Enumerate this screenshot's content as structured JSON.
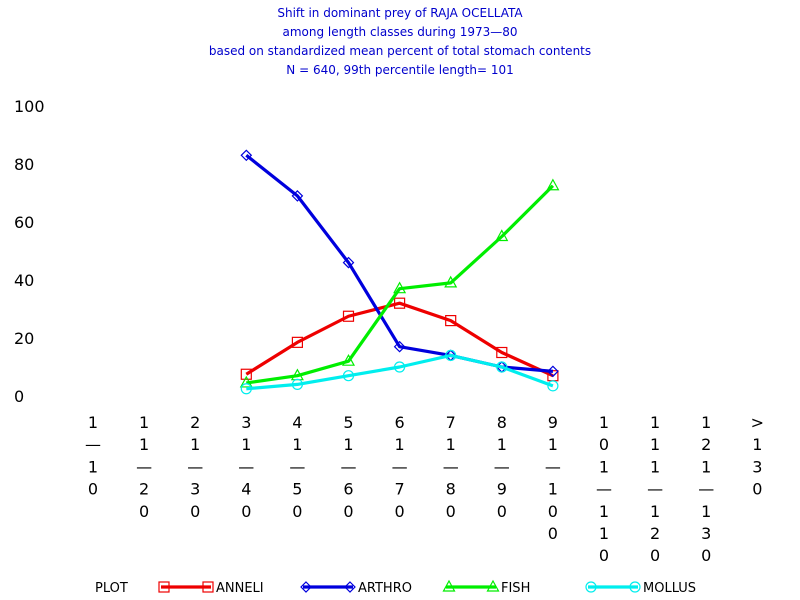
{
  "chart_data": {
    "type": "line",
    "title_lines": [
      "Shift in dominant prey of RAJA OCELLATA",
      "among length classes during 1973—80",
      "based on standardized mean percent of  total stomach contents",
      "N =  640, 99th percentile  length= 101"
    ],
    "ylim": [
      0,
      100
    ],
    "yticks": [
      "0",
      "20",
      "40",
      "60",
      "80",
      "100"
    ],
    "categories": [
      "1—10",
      "11—20",
      "21—30",
      "31—40",
      "41—50",
      "51—60",
      "61—70",
      "71—80",
      "81—90",
      "91—100",
      "101—110",
      "111—120",
      "121—130",
      ">130"
    ],
    "category_labels_stacked": [
      [
        "1",
        "—",
        "1",
        "0"
      ],
      [
        "1",
        "1",
        "—",
        "2",
        "0"
      ],
      [
        "2",
        "1",
        "—",
        "3",
        "0"
      ],
      [
        "3",
        "1",
        "—",
        "4",
        "0"
      ],
      [
        "4",
        "1",
        "—",
        "5",
        "0"
      ],
      [
        "5",
        "1",
        "—",
        "6",
        "0"
      ],
      [
        "6",
        "1",
        "—",
        "7",
        "0"
      ],
      [
        "7",
        "1",
        "—",
        "8",
        "0"
      ],
      [
        "8",
        "1",
        "—",
        "9",
        "0"
      ],
      [
        "9",
        "1",
        "—",
        "1",
        "0",
        "0"
      ],
      [
        "1",
        "0",
        "1",
        "—",
        "1",
        "1",
        "0"
      ],
      [
        "1",
        "1",
        "1",
        "—",
        "1",
        "2",
        "0"
      ],
      [
        "1",
        "2",
        "1",
        "—",
        "1",
        "3",
        "0"
      ],
      [
        ">",
        "1",
        "3",
        "0"
      ]
    ],
    "legend_label": "PLOT",
    "grid": false,
    "series": [
      {
        "name": "ANNELI",
        "color": "#ee0000",
        "marker": "square",
        "values": [
          null,
          null,
          null,
          7.5,
          18.5,
          27.5,
          32,
          26,
          15,
          7,
          null,
          null,
          null,
          null
        ]
      },
      {
        "name": "ARTHRO",
        "color": "#0000dd",
        "marker": "diamond",
        "values": [
          null,
          null,
          null,
          83,
          69,
          46,
          17,
          14,
          10,
          8.5,
          null,
          null,
          null,
          null
        ]
      },
      {
        "name": "FISH",
        "color": "#00ee00",
        "marker": "triangle",
        "values": [
          null,
          null,
          null,
          4.5,
          7,
          12,
          37,
          39,
          55,
          72.5,
          null,
          null,
          null,
          null
        ]
      },
      {
        "name": "MOLLUS",
        "color": "#00eeee",
        "marker": "circle",
        "values": [
          null,
          null,
          null,
          2.5,
          4,
          7,
          10,
          14,
          10,
          3.5,
          null,
          null,
          null,
          null
        ]
      }
    ]
  }
}
